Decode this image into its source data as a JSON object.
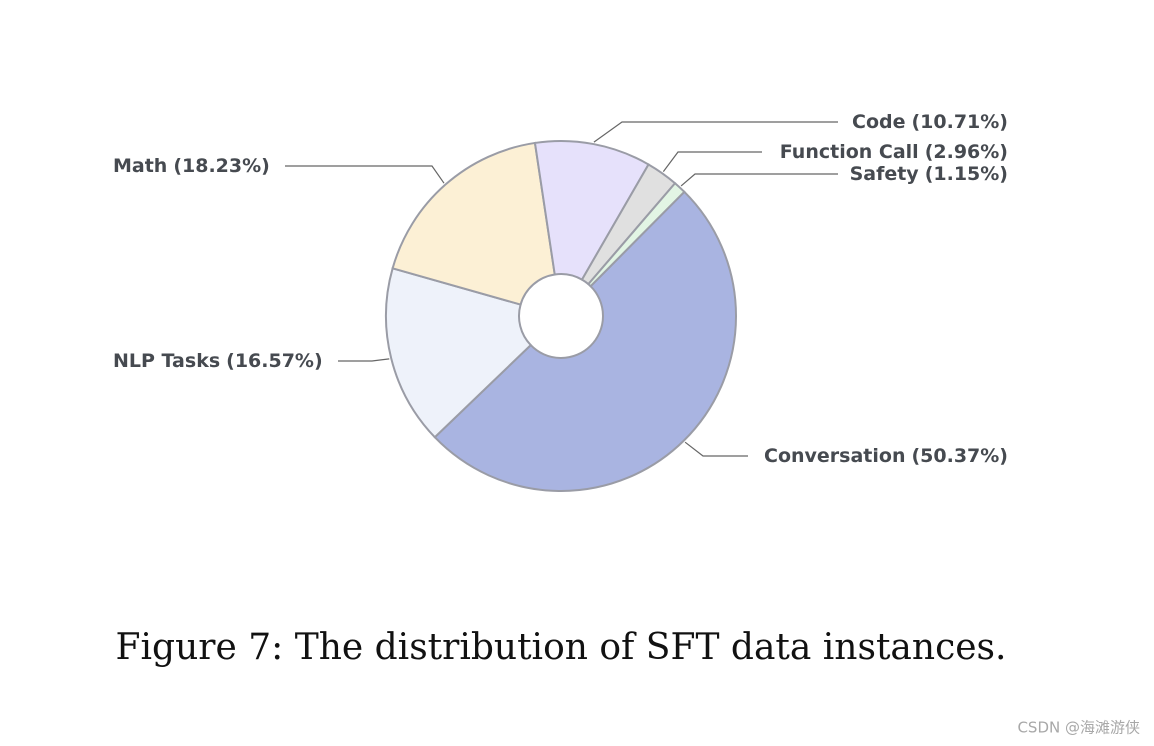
{
  "chart_data": {
    "type": "pie",
    "categories": [
      "Conversation",
      "NLP Tasks",
      "Math",
      "Code",
      "Function Call",
      "Safety"
    ],
    "values": [
      50.37,
      16.57,
      18.23,
      10.71,
      2.96,
      1.15
    ],
    "value_labels": [
      "(50.37%)",
      "(16.57%)",
      "(18.23%)",
      "(10.71%)",
      "(2.96%)",
      "(1.15%)"
    ],
    "colors": [
      "#a9b4e1",
      "#eef2fa",
      "#fcf0d5",
      "#e6e1fb",
      "#e0e0e0",
      "#e2f5e4"
    ],
    "caption": "Figure 7: The distribution of SFT data instances."
  },
  "watermark": "CSDN @海滩游侠"
}
